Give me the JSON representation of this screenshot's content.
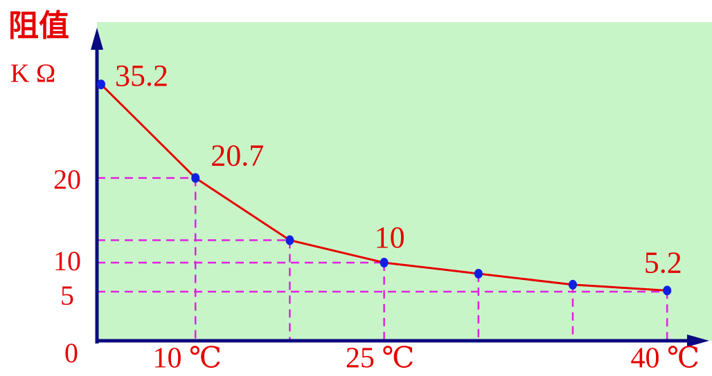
{
  "chart_data": {
    "type": "line",
    "ylabel": "阻值",
    "yunit": "K Ω",
    "categories": [
      null,
      "10 ℃",
      null,
      "25 ℃",
      null,
      null,
      "40 ℃"
    ],
    "series": [
      {
        "color": "#e60000",
        "marker_color": "#1020e0",
        "values": [
          35.2,
          20.7,
          12.8,
          10,
          8.1,
          6.2,
          5.2
        ]
      }
    ],
    "labeled_points": [
      0,
      1,
      3,
      6
    ],
    "ylim": [
      0,
      44
    ],
    "yticks": [
      0,
      5,
      10,
      20
    ],
    "grid_color": "#e020e0",
    "background": "#c8f5c8",
    "axis_color": "#0a0a80"
  }
}
